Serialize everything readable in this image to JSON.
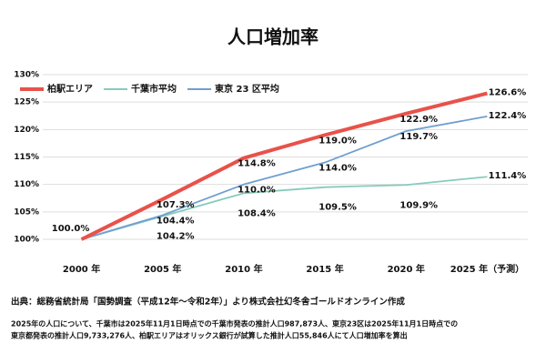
{
  "chart_data": {
    "type": "line",
    "title": "人口増加率",
    "categories": [
      "2000 年",
      "2005 年",
      "2010 年",
      "2015 年",
      "2020 年",
      "2025 年（予測）"
    ],
    "series": [
      {
        "name": "柏駅エリア",
        "color": "#e8524a",
        "values": [
          100.0,
          107.3,
          114.8,
          119.0,
          122.9,
          126.6
        ],
        "value_labels": [
          "100.0%",
          "107.3%",
          "114.8%",
          "119.0%",
          "122.9%",
          "126.6%"
        ]
      },
      {
        "name": "千葉市平均",
        "color": "#86cbbb",
        "values": [
          100.0,
          104.2,
          108.4,
          109.5,
          109.9,
          111.4
        ],
        "value_labels": [
          null,
          "104.2%",
          "108.4%",
          "109.5%",
          "109.9%",
          "111.4%"
        ]
      },
      {
        "name": "東京 23 区平均",
        "color": "#6f9fd0",
        "values": [
          100.0,
          104.4,
          110.0,
          114.0,
          119.7,
          122.4
        ],
        "value_labels": [
          null,
          "104.4%",
          "110.0%",
          "114.0%",
          "119.7%",
          "122.4%"
        ]
      }
    ],
    "ylim": [
      100,
      130
    ],
    "yticks": [
      {
        "value": 100,
        "label": "100%"
      },
      {
        "value": 105,
        "label": "105%"
      },
      {
        "value": 110,
        "label": "110%"
      },
      {
        "value": 115,
        "label": "115%"
      },
      {
        "value": 120,
        "label": "120%"
      },
      {
        "value": 125,
        "label": "125%"
      },
      {
        "value": 130,
        "label": "130%"
      }
    ],
    "grid": true,
    "legend": "top-left",
    "source": "出典：総務省統計局「国勢調査（平成12年〜令和2年）」より株式会社幻冬舎ゴールドオンライン作成",
    "notes": [
      "2025年の人口について、千葉市は2025年11月1日時点での千葉市発表の推計人口987,873人、東京23区は2025年11月1日時点での",
      "東京都発表の推計人口9,733,276人、柏駅エリアはオリックス銀行が試算した推計人口55,846人にて人口増加率を算出"
    ]
  }
}
